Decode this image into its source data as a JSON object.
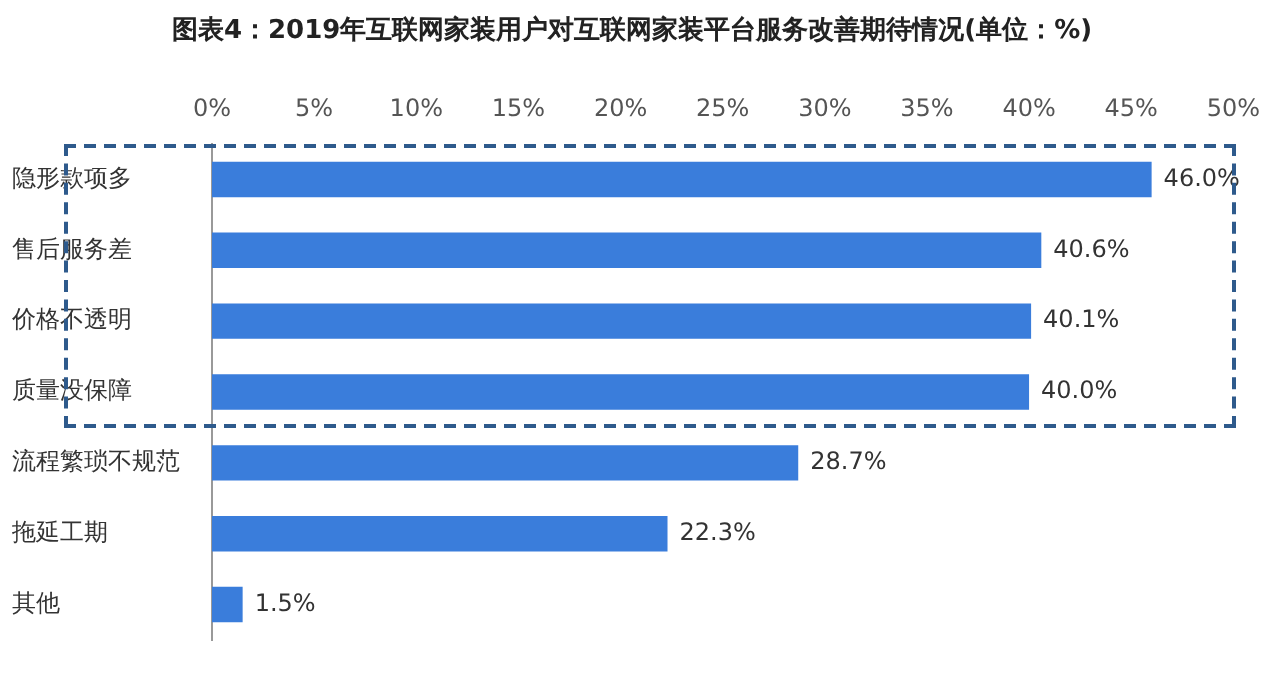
{
  "chart_data": {
    "type": "bar",
    "orientation": "horizontal",
    "title": "图表4：2019年互联网家装用户对互联网家装平台服务改善期待情况(单位：%)",
    "categories": [
      "隐形款项多",
      "售后服务差",
      "价格不透明",
      "质量没保障",
      "流程繁琐不规范",
      "拖延工期",
      "其他"
    ],
    "values": [
      46.0,
      40.6,
      40.1,
      40.0,
      28.7,
      22.3,
      1.5
    ],
    "value_labels": [
      "46.0%",
      "40.6%",
      "40.1%",
      "40.0%",
      "28.7%",
      "22.3%",
      "1.5%"
    ],
    "color": "#3a7ddb",
    "xlim": [
      0,
      50
    ],
    "xticks": [
      {
        "value": 0,
        "label": "0%"
      },
      {
        "value": 5,
        "label": "5%"
      },
      {
        "value": 10,
        "label": "10%"
      },
      {
        "value": 15,
        "label": "15%"
      },
      {
        "value": 20,
        "label": "20%"
      },
      {
        "value": 25,
        "label": "25%"
      },
      {
        "value": 30,
        "label": "30%"
      },
      {
        "value": 35,
        "label": "35%"
      },
      {
        "value": 40,
        "label": "40%"
      },
      {
        "value": 45,
        "label": "45%"
      },
      {
        "value": 50,
        "label": "50%"
      }
    ],
    "grid": false,
    "legend": false
  }
}
